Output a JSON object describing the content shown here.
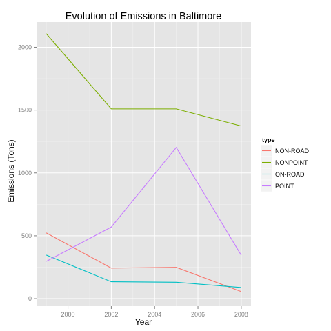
{
  "chart_data": {
    "type": "line",
    "title": "Evolution of Emissions in Baltimore",
    "xlabel": "Year",
    "ylabel": "Emissions (Tons)",
    "x": [
      1999,
      2002,
      2005,
      2008
    ],
    "xlim": [
      1998.55,
      2008.45
    ],
    "ylim": [
      -60,
      2200
    ],
    "x_ticks": [
      2000,
      2002,
      2004,
      2006,
      2008
    ],
    "y_ticks": [
      0,
      500,
      1000,
      1500,
      2000
    ],
    "grid": true,
    "legend": {
      "title": "type",
      "position": "right"
    },
    "series": [
      {
        "name": "NON-ROAD",
        "color": "#F8766D",
        "values": [
          522.9,
          242.8,
          248.9,
          55.8
        ]
      },
      {
        "name": "NONPOINT",
        "color": "#7CAE00",
        "values": [
          2107.6,
          1509.5,
          1509.5,
          1373.2
        ]
      },
      {
        "name": "ON-ROAD",
        "color": "#00BFC4",
        "values": [
          346.8,
          134.3,
          130.4,
          88.3
        ]
      },
      {
        "name": "POINT",
        "color": "#C77CFF",
        "values": [
          296.8,
          569.3,
          1202.5,
          344.98
        ]
      }
    ]
  }
}
